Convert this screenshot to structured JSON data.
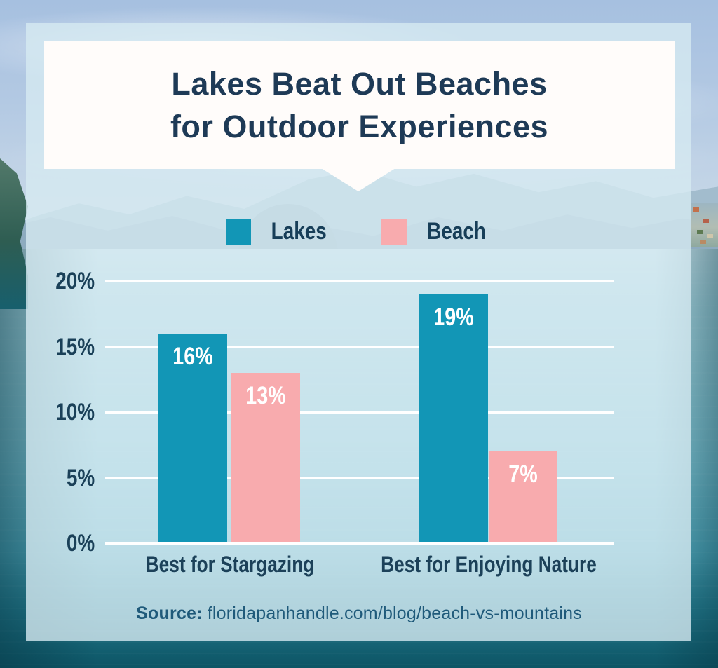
{
  "title": {
    "lines": [
      "Lakes Beat Out Beaches",
      "for Outdoor Experiences"
    ]
  },
  "chart_data": {
    "type": "bar",
    "title": "Lakes Beat Out Beaches for Outdoor Experiences",
    "categories": [
      "Best for Stargazing",
      "Best for Enjoying Nature"
    ],
    "series": [
      {
        "name": "Lakes",
        "values": [
          16,
          19
        ],
        "value_labels": [
          "16%",
          "19%"
        ],
        "color": "#1296b6"
      },
      {
        "name": "Beach",
        "values": [
          13,
          7
        ],
        "value_labels": [
          "13%",
          "7%"
        ],
        "color": "#f8abae"
      }
    ],
    "y_ticks": [
      "20%",
      "15%",
      "10%",
      "5%",
      "0%"
    ],
    "ylim": [
      0,
      20
    ],
    "grid": true,
    "legend_position": "top",
    "value_suffix": "%"
  },
  "legend": {
    "items": [
      {
        "label": "Lakes",
        "color": "#1296b6"
      },
      {
        "label": "Beach",
        "color": "#f8abae"
      }
    ]
  },
  "source": {
    "label": "Source:",
    "text": " floridapanhandle.com/blog/beach-vs-mountains"
  },
  "colors": {
    "lakes_teal": "#1296b6",
    "beach_pink": "#f8abae",
    "navy_text": "#1e3a56",
    "source_text": "#1f5a7a",
    "card_white": "#fffcfa",
    "gridline_white": "#ffffff"
  }
}
